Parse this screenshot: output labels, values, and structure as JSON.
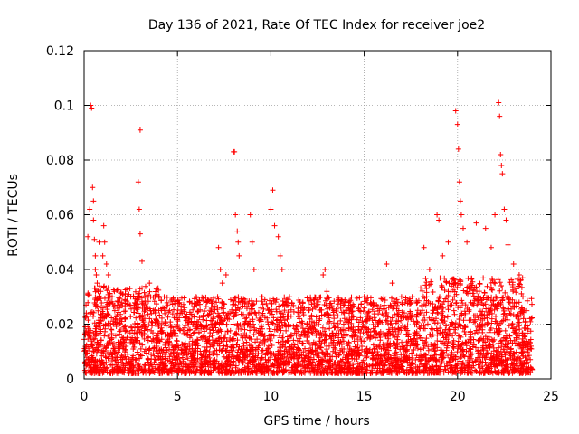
{
  "chart_data": {
    "type": "scatter",
    "title": "Day 136 of 2021, Rate Of TEC Index for receiver joe2",
    "xlabel": "GPS time / hours",
    "ylabel": "ROTI / TECUs",
    "xlim": [
      0,
      25
    ],
    "ylim": [
      0,
      0.12
    ],
    "x_ticks": [
      0,
      5,
      10,
      15,
      20,
      25
    ],
    "x_tick_labels": [
      "0",
      "5",
      "10",
      "15",
      "20",
      "25"
    ],
    "y_ticks": [
      0,
      0.02,
      0.04,
      0.06,
      0.08,
      0.1,
      0.12
    ],
    "y_tick_labels": [
      "0",
      "0.02",
      "0.04",
      "0.06",
      "0.08",
      "0.1",
      "0.12"
    ],
    "grid": true,
    "marker": "+",
    "series": [
      {
        "name": "ROTI",
        "color": "#ff0000",
        "x": [
          0.1,
          0.2,
          0.3,
          0.35,
          0.4,
          0.45,
          0.5,
          0.5,
          0.55,
          0.6,
          0.6,
          0.65,
          0.7,
          0.75,
          0.8,
          1.0,
          1.05,
          1.1,
          1.2,
          1.3,
          1.5,
          2.0,
          2.5,
          2.9,
          2.95,
          3.0,
          3.0,
          3.1,
          3.5,
          3.8,
          4.0,
          5.0,
          6.0,
          7.2,
          7.3,
          7.4,
          7.6,
          8.0,
          8.05,
          8.1,
          8.2,
          8.25,
          8.3,
          8.9,
          9.0,
          9.1,
          9.5,
          10.0,
          10.1,
          10.2,
          10.4,
          10.5,
          10.6,
          11.0,
          12.0,
          12.8,
          12.9,
          13.0,
          14.0,
          15.0,
          16.2,
          16.5,
          17.0,
          18.2,
          18.5,
          18.9,
          19.0,
          19.2,
          19.5,
          19.9,
          20.0,
          20.05,
          20.1,
          20.15,
          20.2,
          20.3,
          20.5,
          21.0,
          21.5,
          21.8,
          22.0,
          22.2,
          22.25,
          22.3,
          22.35,
          22.4,
          22.5,
          22.6,
          22.7,
          23.0,
          23.3,
          23.5
        ],
        "y": [
          0.027,
          0.052,
          0.062,
          0.1,
          0.099,
          0.07,
          0.065,
          0.058,
          0.051,
          0.045,
          0.04,
          0.038,
          0.035,
          0.032,
          0.05,
          0.045,
          0.056,
          0.05,
          0.042,
          0.038,
          0.03,
          0.028,
          0.03,
          0.072,
          0.062,
          0.091,
          0.053,
          0.043,
          0.035,
          0.03,
          0.025,
          0.024,
          0.03,
          0.048,
          0.04,
          0.035,
          0.038,
          0.083,
          0.083,
          0.06,
          0.054,
          0.05,
          0.045,
          0.06,
          0.05,
          0.04,
          0.03,
          0.062,
          0.069,
          0.056,
          0.052,
          0.045,
          0.04,
          0.03,
          0.026,
          0.038,
          0.04,
          0.032,
          0.028,
          0.03,
          0.042,
          0.035,
          0.03,
          0.048,
          0.04,
          0.06,
          0.058,
          0.045,
          0.05,
          0.098,
          0.093,
          0.084,
          0.072,
          0.065,
          0.06,
          0.055,
          0.05,
          0.057,
          0.055,
          0.048,
          0.06,
          0.101,
          0.096,
          0.082,
          0.078,
          0.075,
          0.062,
          0.058,
          0.049,
          0.042,
          0.038,
          0.03
        ],
        "dense_band": {
          "description": "Continuous cloud of points across the full 24 hours",
          "x_range": [
            0,
            24
          ],
          "typical_min": 0.002,
          "typical_max": 0.03
        }
      }
    ]
  }
}
